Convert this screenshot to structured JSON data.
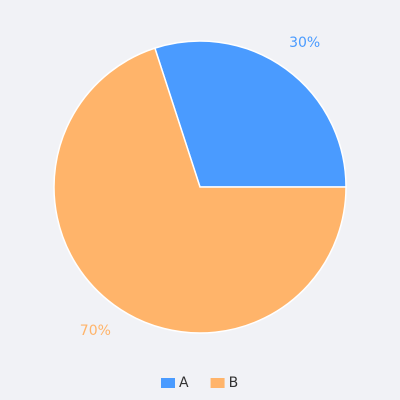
{
  "chart_data": {
    "type": "pie",
    "categories": [
      "A",
      "B"
    ],
    "values": [
      30,
      70
    ],
    "value_labels": [
      "30%",
      "70%"
    ],
    "colors": [
      "#4a9bff",
      "#ffb46a"
    ],
    "legend": "bottom"
  }
}
